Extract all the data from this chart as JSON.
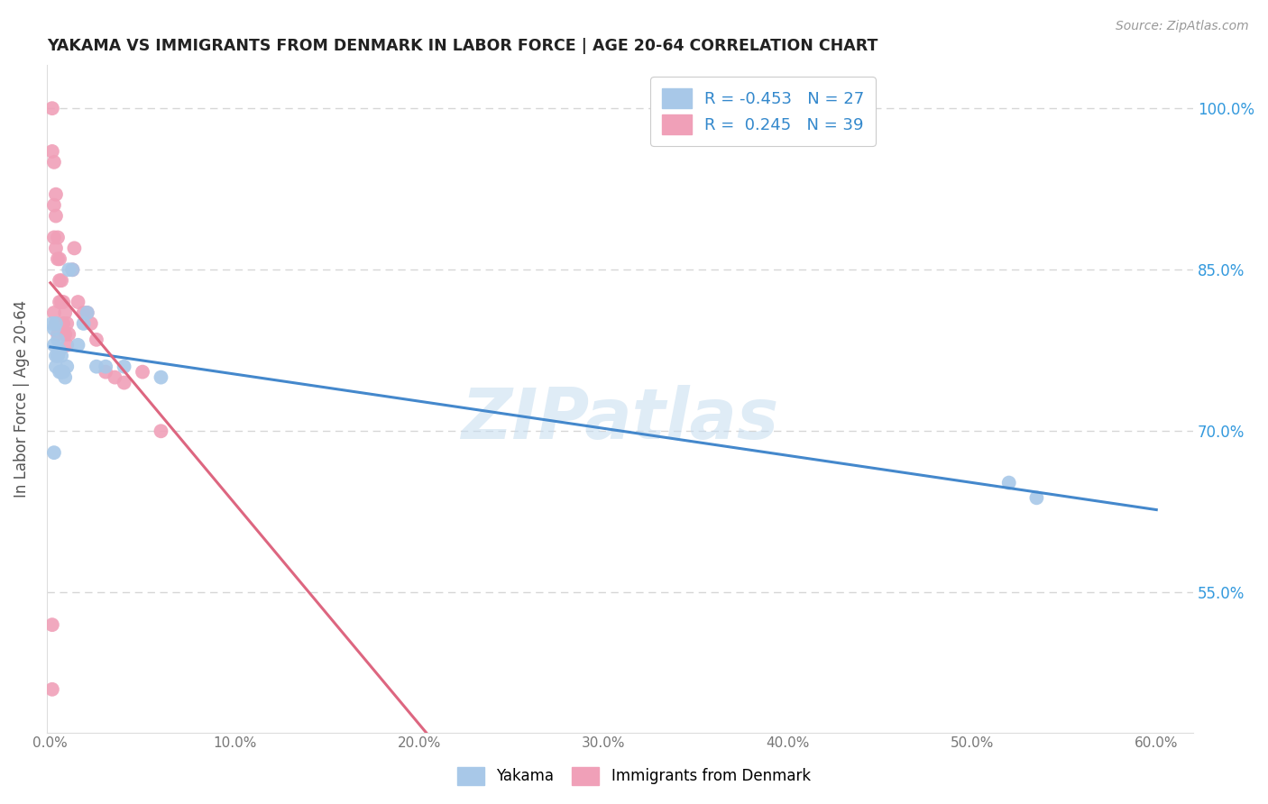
{
  "title": "YAKAMA VS IMMIGRANTS FROM DENMARK IN LABOR FORCE | AGE 20-64 CORRELATION CHART",
  "source": "Source: ZipAtlas.com",
  "ylabel": "In Labor Force | Age 20-64",
  "legend_labels": [
    "Yakama",
    "Immigrants from Denmark"
  ],
  "blue_R": "-0.453",
  "blue_N": "27",
  "pink_R": "0.245",
  "pink_N": "39",
  "blue_color": "#a8c8e8",
  "pink_color": "#f0a0b8",
  "blue_line_color": "#4488cc",
  "pink_line_color": "#dd6680",
  "watermark": "ZIPatlas",
  "xlim": [
    -0.002,
    0.62
  ],
  "ylim": [
    0.42,
    1.04
  ],
  "background_color": "#ffffff",
  "grid_color": "#cccccc",
  "yakama_x": [
    0.001,
    0.002,
    0.002,
    0.003,
    0.003,
    0.004,
    0.004,
    0.005,
    0.005,
    0.006,
    0.006,
    0.007,
    0.008,
    0.009,
    0.01,
    0.012,
    0.015,
    0.018,
    0.02,
    0.025,
    0.03,
    0.04,
    0.06,
    0.52,
    0.535,
    0.003,
    0.002
  ],
  "yakama_y": [
    0.8,
    0.795,
    0.78,
    0.8,
    0.77,
    0.785,
    0.77,
    0.775,
    0.755,
    0.77,
    0.755,
    0.755,
    0.75,
    0.76,
    0.85,
    0.85,
    0.78,
    0.8,
    0.81,
    0.76,
    0.76,
    0.76,
    0.75,
    0.652,
    0.638,
    0.76,
    0.68
  ],
  "denmark_x": [
    0.001,
    0.001,
    0.002,
    0.002,
    0.002,
    0.003,
    0.003,
    0.003,
    0.004,
    0.004,
    0.005,
    0.005,
    0.005,
    0.006,
    0.006,
    0.007,
    0.007,
    0.008,
    0.008,
    0.009,
    0.009,
    0.01,
    0.012,
    0.013,
    0.015,
    0.018,
    0.02,
    0.022,
    0.025,
    0.03,
    0.035,
    0.04,
    0.05,
    0.06,
    0.002,
    0.003,
    0.004,
    0.001,
    0.001
  ],
  "denmark_y": [
    0.96,
    1.0,
    0.95,
    0.91,
    0.88,
    0.92,
    0.9,
    0.87,
    0.88,
    0.86,
    0.86,
    0.84,
    0.82,
    0.84,
    0.82,
    0.82,
    0.8,
    0.81,
    0.79,
    0.8,
    0.78,
    0.79,
    0.85,
    0.87,
    0.82,
    0.81,
    0.81,
    0.8,
    0.785,
    0.755,
    0.75,
    0.745,
    0.755,
    0.7,
    0.81,
    0.8,
    0.79,
    0.52,
    0.46
  ],
  "xtick_vals": [
    0.0,
    0.1,
    0.2,
    0.3,
    0.4,
    0.5,
    0.6
  ],
  "xtick_labels": [
    "0.0%",
    "10.0%",
    "20.0%",
    "30.0%",
    "40.0%",
    "50.0%",
    "60.0%"
  ],
  "ytick_vals": [
    0.55,
    0.7,
    0.85,
    1.0
  ],
  "ytick_labels": [
    "55.0%",
    "70.0%",
    "85.0%",
    "100.0%"
  ]
}
